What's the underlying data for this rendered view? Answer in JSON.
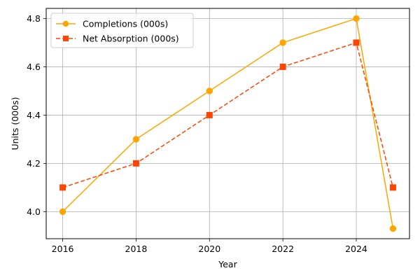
{
  "chart_data": {
    "type": "line",
    "xlabel": "Year",
    "ylabel": "Units (000s)",
    "xlim": [
      2015.55,
      2025.45
    ],
    "ylim": [
      3.888,
      4.842
    ],
    "xticks": [
      2016,
      2018,
      2020,
      2022,
      2024
    ],
    "yticks": [
      4.0,
      4.2,
      4.4,
      4.6,
      4.8
    ],
    "ytick_labels": [
      "4.0",
      "4.2",
      "4.4",
      "4.6",
      "4.8"
    ],
    "grid": true,
    "legend_position": "upper-left",
    "series": [
      {
        "name": "Completions (000s)",
        "color": "#FFA500",
        "line_style": "solid",
        "marker": "circle",
        "x": [
          2016,
          2018,
          2020,
          2022,
          2024,
          2025
        ],
        "y": [
          4.0,
          4.3,
          4.5,
          4.7,
          4.8,
          3.93
        ]
      },
      {
        "name": "Net Absorption (000s)",
        "color": "#FF4500",
        "line_style": "dashed",
        "marker": "square",
        "x": [
          2016,
          2018,
          2020,
          2022,
          2024,
          2025
        ],
        "y": [
          4.1,
          4.2,
          4.4,
          4.6,
          4.7,
          4.1
        ]
      }
    ]
  }
}
